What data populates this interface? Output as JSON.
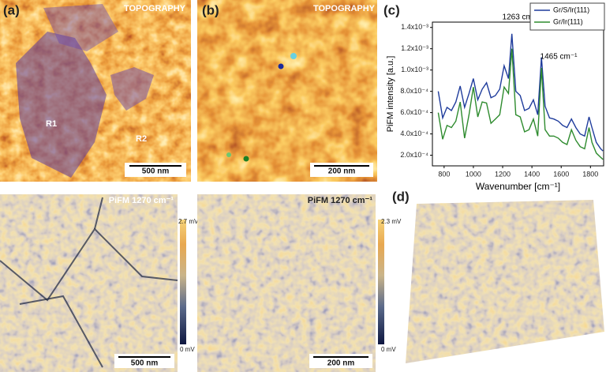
{
  "panels": {
    "a": {
      "label": "(a)",
      "top_title": "TOPOGRAPHY",
      "regions": [
        "R1",
        "R2"
      ],
      "top_scale": "500 nm",
      "bottom_title": "PiFM 1270 cm⁻¹",
      "bottom_scale": "500 nm",
      "colorbar": [
        "2.7 mV",
        "0 mV"
      ]
    },
    "b": {
      "label": "(b)",
      "top_title": "TOPOGRAPHY",
      "top_scale": "200 nm",
      "bottom_title": "PiFM 1270 cm⁻¹",
      "bottom_scale": "200 nm",
      "colorbar": [
        "2.3 mV",
        "0 mV"
      ]
    },
    "d": {
      "label": "(d)"
    }
  },
  "chart_data": {
    "type": "line",
    "panel_label": "(c)",
    "x_label": "Wavenumber [cm⁻¹]",
    "y_label": "PiFM intensity [a.u.]",
    "annotations": [
      "1263 cm⁻¹",
      "1465 cm⁻¹"
    ],
    "x": [
      760,
      790,
      820,
      850,
      880,
      910,
      940,
      970,
      1000,
      1030,
      1060,
      1090,
      1120,
      1150,
      1180,
      1210,
      1240,
      1263,
      1290,
      1320,
      1350,
      1380,
      1410,
      1440,
      1465,
      1490,
      1520,
      1550,
      1580,
      1610,
      1640,
      1670,
      1700,
      1730,
      1760,
      1790,
      1810,
      1840,
      1870,
      1885
    ],
    "series": [
      {
        "name": "Gr/S/Ir(111)",
        "color": "#1f3c9c",
        "values": [
          0.0008,
          0.00055,
          0.00065,
          0.00062,
          0.0007,
          0.00085,
          0.00065,
          0.00078,
          0.00092,
          0.00072,
          0.00082,
          0.00088,
          0.00074,
          0.00076,
          0.00082,
          0.00104,
          0.00092,
          0.00134,
          0.0008,
          0.00076,
          0.00062,
          0.00064,
          0.00072,
          0.00058,
          0.00112,
          0.00066,
          0.00055,
          0.00054,
          0.00052,
          0.00048,
          0.00046,
          0.00054,
          0.00046,
          0.0004,
          0.00038,
          0.00056,
          0.00046,
          0.00032,
          0.00026,
          0.00024
        ]
      },
      {
        "name": "Gr/Ir(111)",
        "color": "#2e8b2e",
        "values": [
          0.0006,
          0.00035,
          0.00048,
          0.00046,
          0.00052,
          0.0007,
          0.00036,
          0.00058,
          0.00084,
          0.00056,
          0.0007,
          0.00069,
          0.0005,
          0.00054,
          0.00058,
          0.00084,
          0.00078,
          0.0012,
          0.00058,
          0.00056,
          0.00042,
          0.00044,
          0.00054,
          0.00038,
          0.00102,
          0.00044,
          0.00038,
          0.00038,
          0.00036,
          0.00032,
          0.0003,
          0.00044,
          0.00034,
          0.00028,
          0.00026,
          0.00046,
          0.00032,
          0.00022,
          0.00018,
          0.00016
        ]
      }
    ],
    "xlim": [
      720,
      1890
    ],
    "ylim": [
      0.0001,
      0.00145
    ],
    "xticks": [
      800,
      1000,
      1200,
      1400,
      1600,
      1800
    ],
    "yticks": [
      {
        "value": 0.0002,
        "label": "2.0x10⁻⁴"
      },
      {
        "value": 0.0004,
        "label": "4.0x10⁻⁴"
      },
      {
        "value": 0.0006,
        "label": "6.0x10⁻⁴"
      },
      {
        "value": 0.0008,
        "label": "8.0x10⁻⁴"
      },
      {
        "value": 0.001,
        "label": "1.0x10⁻³"
      },
      {
        "value": 0.0012,
        "label": "1.2x10⁻³"
      },
      {
        "value": 0.0014,
        "label": "1.4x10⁻³"
      }
    ],
    "legend": "upper right"
  }
}
